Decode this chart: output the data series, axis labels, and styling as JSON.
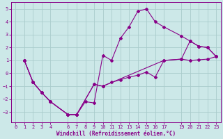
{
  "xlabel": "Windchill (Refroidissement éolien,°C)",
  "bg_color": "#cce8e8",
  "line_color": "#880088",
  "grid_color": "#aacccc",
  "xlim": [
    -0.5,
    23.5
  ],
  "ylim": [
    -3.8,
    5.5
  ],
  "xticks": [
    0,
    1,
    2,
    3,
    4,
    6,
    7,
    8,
    9,
    10,
    11,
    12,
    13,
    14,
    15,
    16,
    17,
    19,
    20,
    21,
    22,
    23
  ],
  "yticks": [
    -3,
    -2,
    -1,
    0,
    1,
    2,
    3,
    4,
    5
  ],
  "series1_x": [
    1,
    2,
    3,
    4,
    6,
    7,
    8,
    9,
    10,
    11,
    12,
    13,
    14,
    15,
    16,
    17,
    19,
    20,
    21,
    22,
    23
  ],
  "series1_y": [
    1.0,
    -0.7,
    -1.5,
    -2.2,
    -3.2,
    -3.2,
    -2.2,
    -2.3,
    1.4,
    1.0,
    2.7,
    3.6,
    4.8,
    5.0,
    4.0,
    3.6,
    2.9,
    2.5,
    2.1,
    2.0,
    1.3
  ],
  "series2_x": [
    1,
    2,
    3,
    4,
    6,
    7,
    9,
    10,
    11,
    12,
    13,
    14,
    15,
    16,
    17,
    19,
    20,
    21,
    22,
    23
  ],
  "series2_y": [
    1.0,
    -0.7,
    -1.5,
    -2.2,
    -3.2,
    -3.2,
    -0.85,
    -1.0,
    -0.7,
    -0.5,
    -0.3,
    -0.15,
    0.1,
    -0.3,
    1.0,
    1.1,
    1.0,
    1.05,
    1.1,
    1.3
  ],
  "series3_x": [
    1,
    2,
    3,
    4,
    6,
    7,
    9,
    10,
    17,
    19,
    20,
    21,
    22,
    23
  ],
  "series3_y": [
    1.0,
    -0.7,
    -1.5,
    -2.2,
    -3.2,
    -3.2,
    -0.85,
    -1.0,
    1.0,
    1.1,
    2.5,
    2.1,
    2.0,
    1.3
  ]
}
